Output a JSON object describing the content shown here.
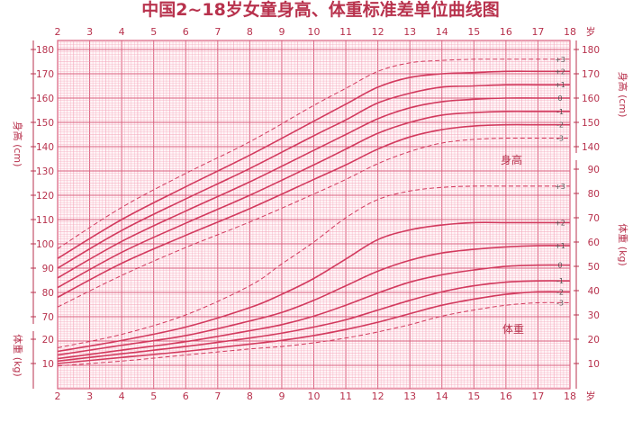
{
  "chart_data": {
    "type": "line",
    "title": "中国2~18岁女童身高、体重标准差单位曲线图",
    "x": {
      "unit": "岁",
      "ticks": [
        2,
        3,
        4,
        5,
        6,
        7,
        8,
        9,
        10,
        11,
        12,
        13,
        14,
        15,
        16,
        17,
        18
      ],
      "range": [
        2,
        18
      ]
    },
    "height_axis": {
      "label": "身高 (cm)",
      "unit": "cm",
      "left_ticks": [
        70,
        80,
        90,
        100,
        110,
        120,
        130,
        140,
        150,
        160,
        170,
        180
      ],
      "right_ticks": [
        140,
        150,
        160,
        170,
        180
      ],
      "range": [
        65,
        185
      ]
    },
    "weight_axis": {
      "label": "体重 (kg)",
      "unit": "kg",
      "left_ticks": [
        10,
        20
      ],
      "right_ticks": [
        10,
        20,
        30,
        40,
        50,
        60,
        70,
        80,
        90
      ],
      "range": [
        0,
        95
      ]
    },
    "height_series_label": "身高",
    "weight_series_label": "体重",
    "height_series": [
      {
        "sd": "+3",
        "dashed": true,
        "ages": [
          2,
          4,
          6,
          8,
          10,
          11,
          12,
          13,
          14,
          15,
          16,
          17,
          18
        ],
        "values": [
          98.0,
          115.0,
          129.0,
          142.0,
          157.0,
          164.0,
          171.0,
          174.5,
          175.5,
          176.0,
          176.0,
          176.0,
          176.0
        ]
      },
      {
        "sd": "+2",
        "dashed": false,
        "ages": [
          2,
          4,
          6,
          8,
          10,
          11,
          12,
          13,
          14,
          15,
          16,
          17,
          18
        ],
        "values": [
          94.0,
          110.0,
          123.5,
          136.5,
          150.5,
          157.5,
          164.5,
          168.5,
          170.0,
          170.5,
          171.0,
          171.0,
          171.0
        ]
      },
      {
        "sd": "+1",
        "dashed": false,
        "ages": [
          2,
          4,
          6,
          8,
          10,
          11,
          12,
          13,
          14,
          15,
          16,
          17,
          18
        ],
        "values": [
          90.0,
          105.5,
          118.5,
          131.0,
          144.5,
          151.0,
          158.0,
          162.0,
          164.5,
          165.0,
          165.5,
          165.5,
          165.5
        ]
      },
      {
        "sd": "0",
        "dashed": false,
        "ages": [
          2,
          4,
          6,
          8,
          10,
          11,
          12,
          13,
          14,
          15,
          16,
          17,
          18
        ],
        "values": [
          86.0,
          101.0,
          113.5,
          125.5,
          138.5,
          145.0,
          151.5,
          156.0,
          158.5,
          159.5,
          160.0,
          160.0,
          160.0
        ]
      },
      {
        "sd": "-1",
        "dashed": false,
        "ages": [
          2,
          4,
          6,
          8,
          10,
          11,
          12,
          13,
          14,
          15,
          16,
          17,
          18
        ],
        "values": [
          82.0,
          96.5,
          108.5,
          120.0,
          132.5,
          139.0,
          145.5,
          150.0,
          153.0,
          154.0,
          154.5,
          154.5,
          154.5
        ]
      },
      {
        "sd": "-2",
        "dashed": false,
        "ages": [
          2,
          4,
          6,
          8,
          10,
          11,
          12,
          13,
          14,
          15,
          16,
          17,
          18
        ],
        "values": [
          78.0,
          92.0,
          103.5,
          114.5,
          126.5,
          132.5,
          139.0,
          144.0,
          147.0,
          148.5,
          149.0,
          149.0,
          149.0
        ]
      },
      {
        "sd": "-3",
        "dashed": true,
        "ages": [
          2,
          4,
          6,
          8,
          10,
          11,
          12,
          13,
          14,
          15,
          16,
          17,
          18
        ],
        "values": [
          74.0,
          87.0,
          98.5,
          109.0,
          120.5,
          126.5,
          133.0,
          138.0,
          141.5,
          143.0,
          143.5,
          143.5,
          143.5
        ]
      }
    ],
    "weight_series": [
      {
        "sd": "+3",
        "dashed": true,
        "ages": [
          2,
          4,
          6,
          8,
          9,
          10,
          11,
          12,
          13,
          14,
          15,
          16,
          17,
          18
        ],
        "values": [
          16.5,
          22.0,
          30.0,
          42.0,
          51.0,
          60.0,
          70.0,
          77.5,
          81.0,
          82.5,
          83.0,
          83.0,
          83.0,
          83.0
        ]
      },
      {
        "sd": "+2",
        "dashed": false,
        "ages": [
          2,
          4,
          6,
          8,
          9,
          10,
          11,
          12,
          13,
          14,
          15,
          16,
          17,
          18
        ],
        "values": [
          15.0,
          19.5,
          25.0,
          33.0,
          38.5,
          45.0,
          53.0,
          61.0,
          65.0,
          67.0,
          68.0,
          68.0,
          68.0,
          68.0
        ]
      },
      {
        "sd": "+1",
        "dashed": false,
        "ages": [
          2,
          4,
          6,
          8,
          9,
          10,
          11,
          12,
          13,
          14,
          15,
          16,
          17,
          18
        ],
        "values": [
          13.5,
          17.5,
          21.5,
          27.5,
          31.0,
          36.0,
          42.0,
          48.0,
          52.5,
          55.5,
          57.0,
          58.0,
          58.5,
          58.5
        ]
      },
      {
        "sd": "0",
        "dashed": false,
        "ages": [
          2,
          4,
          6,
          8,
          9,
          10,
          11,
          12,
          13,
          14,
          15,
          16,
          17,
          18
        ],
        "values": [
          12.0,
          15.5,
          19.0,
          23.5,
          26.0,
          29.5,
          34.0,
          39.0,
          43.5,
          46.5,
          48.5,
          50.0,
          50.5,
          50.5
        ]
      },
      {
        "sd": "-1",
        "dashed": false,
        "ages": [
          2,
          4,
          6,
          8,
          9,
          10,
          11,
          12,
          13,
          14,
          15,
          16,
          17,
          18
        ],
        "values": [
          11.0,
          14.0,
          17.0,
          20.5,
          22.5,
          25.0,
          28.0,
          32.0,
          36.0,
          39.5,
          42.0,
          43.5,
          44.0,
          44.0
        ]
      },
      {
        "sd": "-2",
        "dashed": false,
        "ages": [
          2,
          4,
          6,
          8,
          9,
          10,
          11,
          12,
          13,
          14,
          15,
          16,
          17,
          18
        ],
        "values": [
          10.0,
          12.5,
          15.0,
          18.0,
          19.5,
          21.5,
          24.0,
          27.0,
          30.5,
          34.0,
          36.5,
          38.5,
          39.5,
          39.5
        ]
      },
      {
        "sd": "-3",
        "dashed": true,
        "ages": [
          2,
          4,
          6,
          8,
          9,
          10,
          11,
          12,
          13,
          14,
          15,
          16,
          17,
          18
        ],
        "values": [
          9.0,
          11.0,
          13.5,
          16.0,
          17.0,
          18.5,
          20.5,
          23.0,
          26.0,
          29.5,
          32.0,
          34.0,
          35.0,
          35.0
        ]
      }
    ],
    "colors": {
      "curve": "#d23a5e",
      "minor_grid": "#f3a3b8",
      "major_grid": "#d9607e",
      "axis_text": "#b8324d",
      "title": "#b8324d"
    }
  }
}
